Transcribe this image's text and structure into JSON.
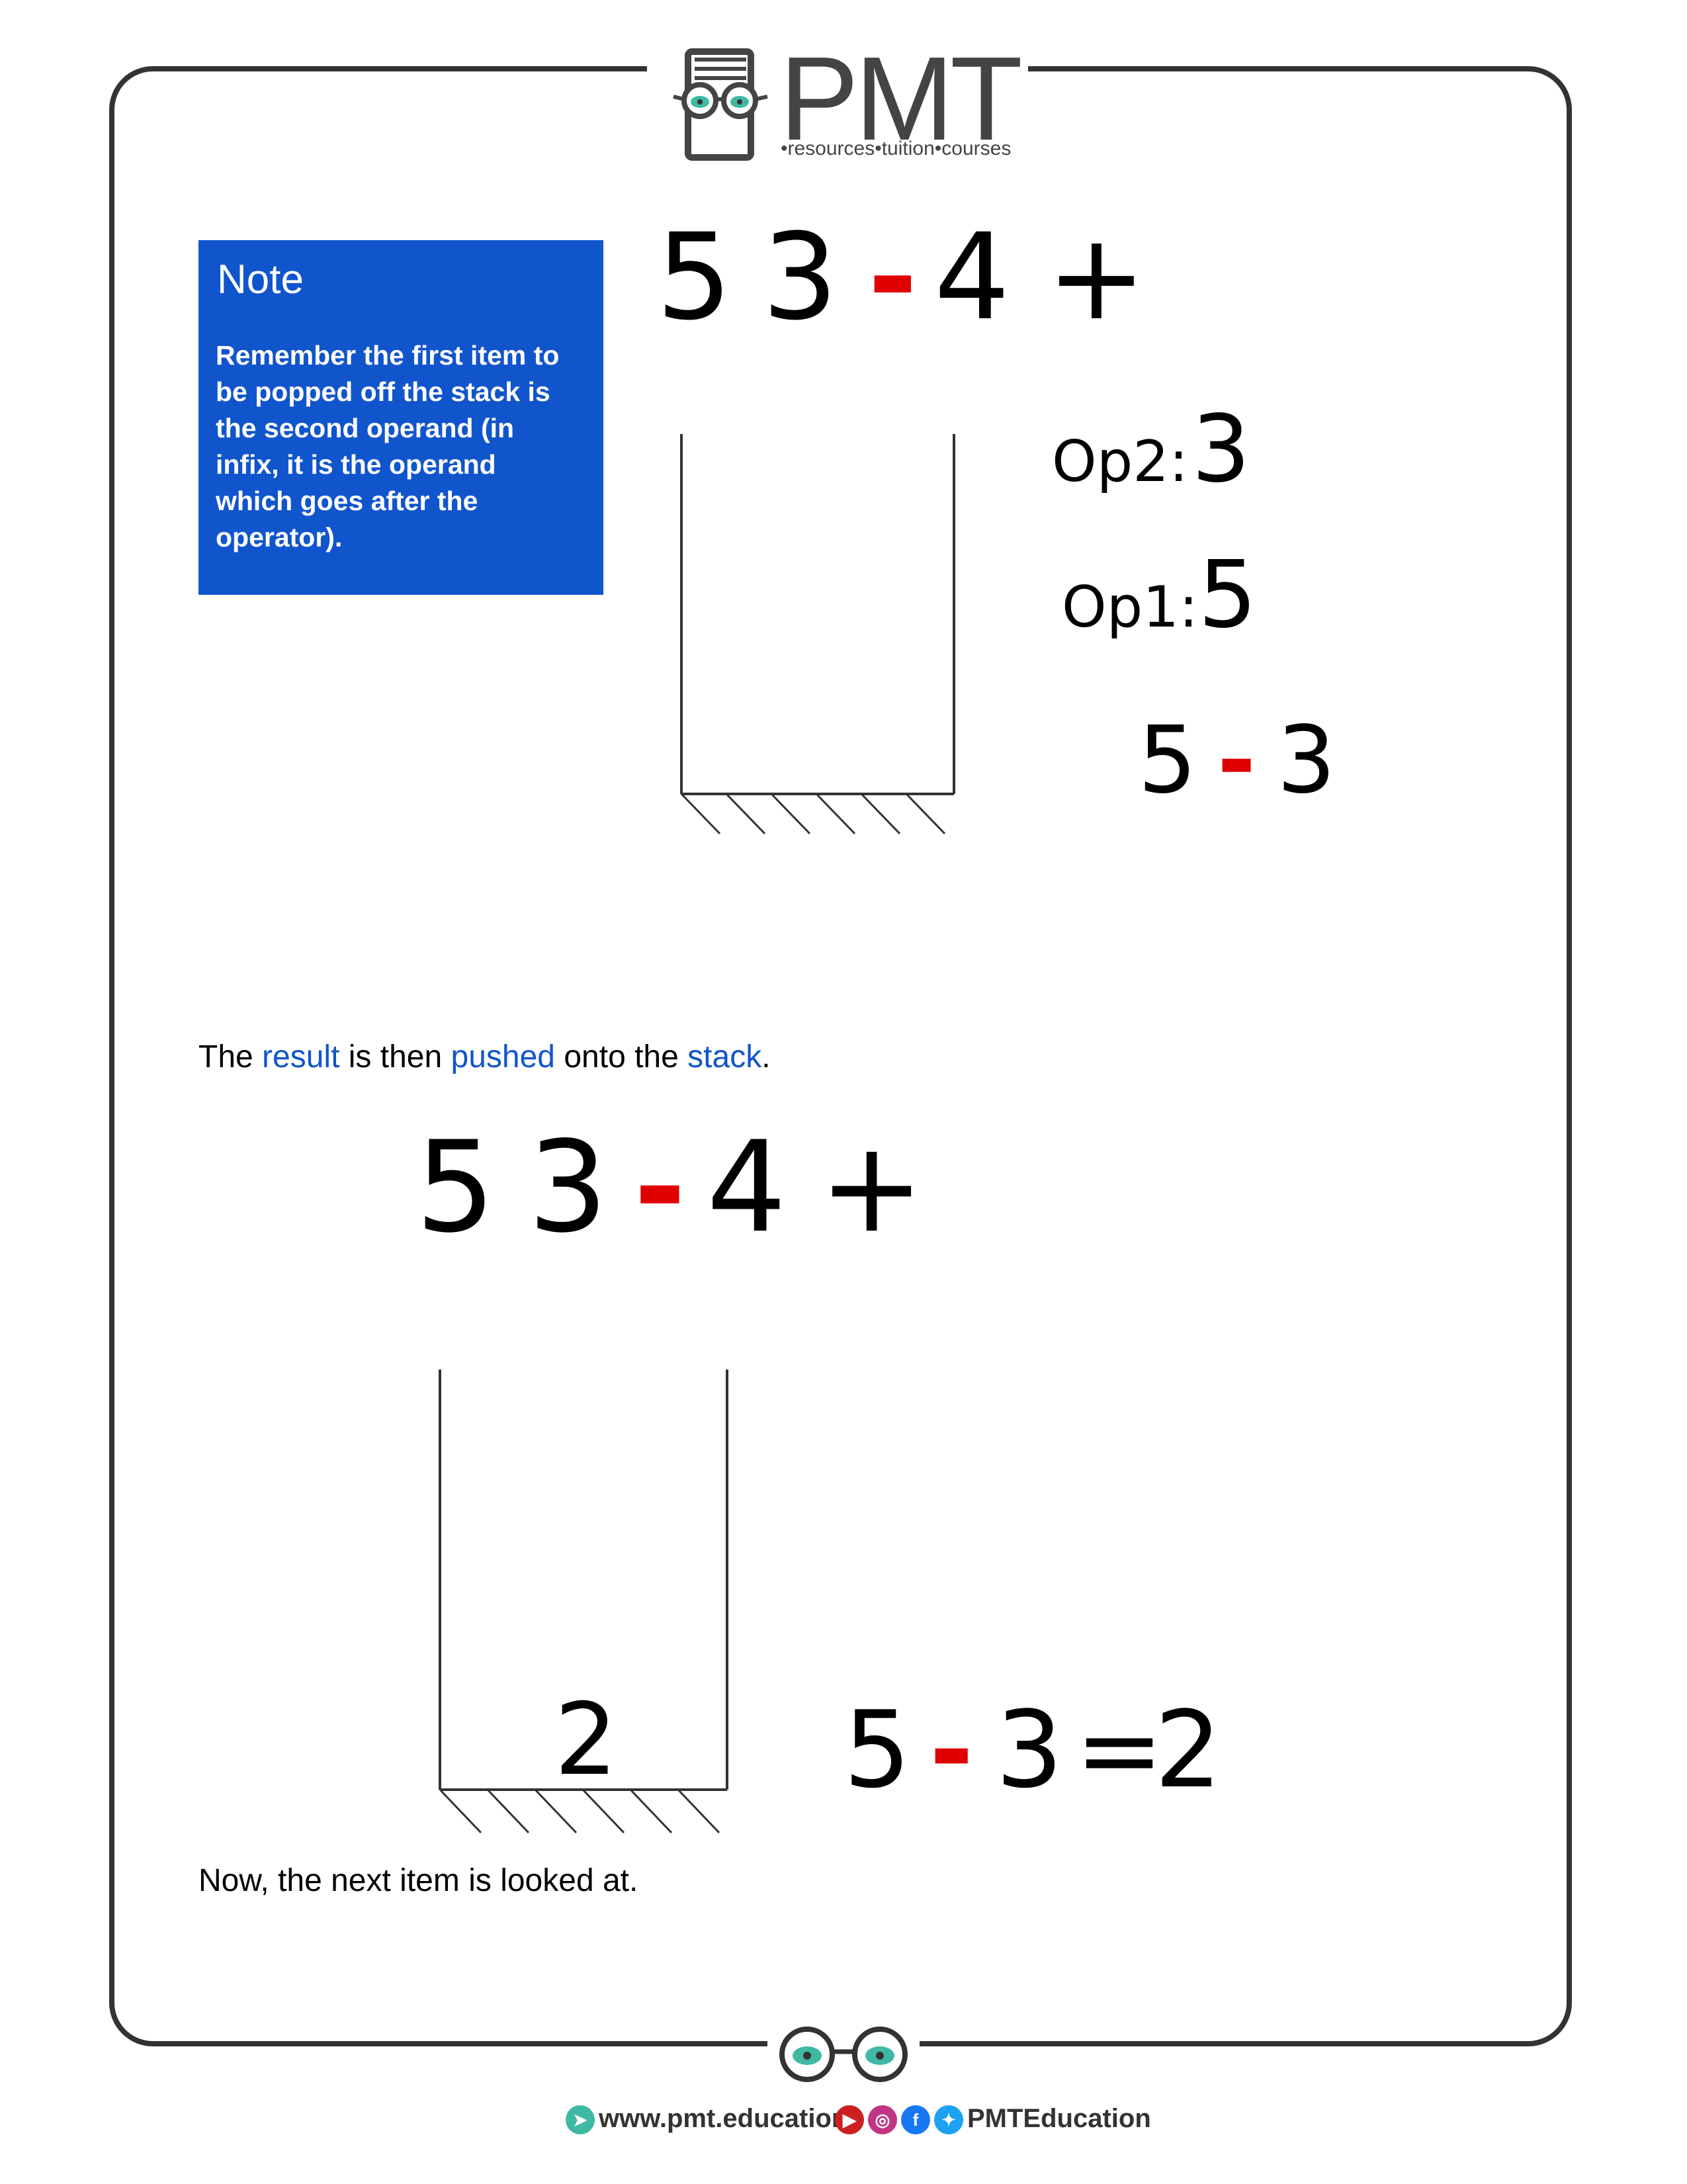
{
  "header": {
    "brand": "PMT",
    "tagline": "•resources•tuition•courses"
  },
  "note": {
    "title": "Note",
    "body_lines": [
      "Remember the first item to",
      "be popped off the stack is",
      "the second operand (in",
      "infix, it is the operand",
      "which goes after the",
      "operator)."
    ]
  },
  "top_expression": {
    "t1": "5",
    "t2": "3",
    "t3": "-",
    "t4": "4",
    "t5": "+"
  },
  "op2": {
    "label": "Op2:",
    "value": "3"
  },
  "op1": {
    "label": "Op1:",
    "value": "5"
  },
  "subtraction": {
    "a": "5",
    "op": "-",
    "b": "3"
  },
  "paragraph1": {
    "p1": "The ",
    "w1": "result",
    "p2": " is then ",
    "w2": "pushed",
    "p3": " onto the ",
    "w3": "stack",
    "p4": "."
  },
  "bottom_expression": {
    "t1": "5",
    "t2": "3",
    "t3": "-",
    "t4": "4",
    "t5": "+"
  },
  "stack_value": "2",
  "equation": {
    "a": "5",
    "op": "-",
    "b": "3",
    "eq": "=",
    "r": "2"
  },
  "paragraph2": "Now, the next item is looked at.",
  "footer": {
    "website": "www.pmt.education",
    "social": "PMTEducation"
  },
  "colors": {
    "accent_blue": "#1155cc",
    "operator_red": "#e00000",
    "logo_teal": "#3fb9a3"
  }
}
